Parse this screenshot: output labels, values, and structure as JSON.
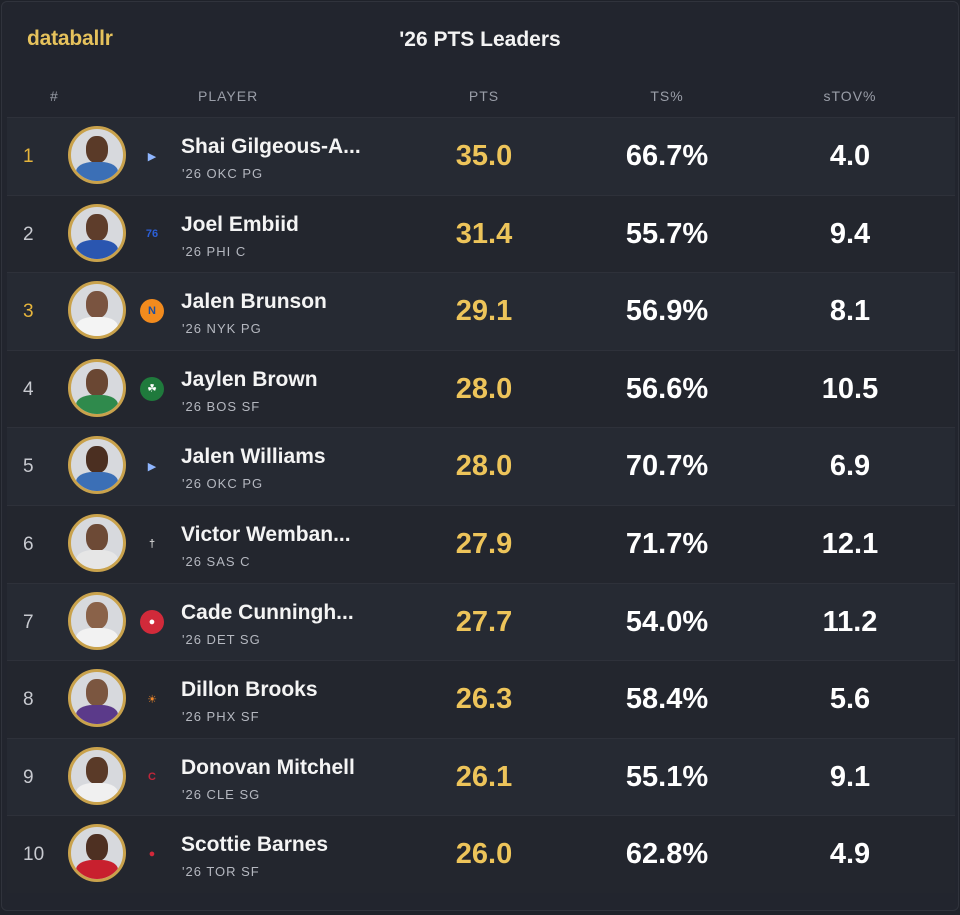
{
  "header": {
    "brand": "databallr",
    "title": "'26 PTS Leaders"
  },
  "columns": {
    "rank": "#",
    "player": "PLAYER",
    "pts": "PTS",
    "ts": "TS%",
    "stov": "sTOV%"
  },
  "colors": {
    "accent_gold": "#e6c25c",
    "background": "#22252e"
  },
  "players": [
    {
      "rank": "1",
      "name": "Shai Gilgeous-A...",
      "meta": "'26 OKC PG",
      "pts": "35.0",
      "ts": "66.7%",
      "stov": "4.0",
      "team_icon": "thunder-logo-icon"
    },
    {
      "rank": "2",
      "name": "Joel Embiid",
      "meta": "'26 PHI C",
      "pts": "31.4",
      "ts": "55.7%",
      "stov": "9.4",
      "team_icon": "76ers-logo-icon"
    },
    {
      "rank": "3",
      "name": "Jalen Brunson",
      "meta": "'26 NYK PG",
      "pts": "29.1",
      "ts": "56.9%",
      "stov": "8.1",
      "team_icon": "knicks-logo-icon"
    },
    {
      "rank": "4",
      "name": "Jaylen Brown",
      "meta": "'26 BOS SF",
      "pts": "28.0",
      "ts": "56.6%",
      "stov": "10.5",
      "team_icon": "celtics-logo-icon"
    },
    {
      "rank": "5",
      "name": "Jalen Williams",
      "meta": "'26 OKC PG",
      "pts": "28.0",
      "ts": "70.7%",
      "stov": "6.9",
      "team_icon": "thunder-logo-icon"
    },
    {
      "rank": "6",
      "name": "Victor Wemban...",
      "meta": "'26 SAS C",
      "pts": "27.9",
      "ts": "71.7%",
      "stov": "12.1",
      "team_icon": "spurs-logo-icon"
    },
    {
      "rank": "7",
      "name": "Cade Cunningh...",
      "meta": "'26 DET SG",
      "pts": "27.7",
      "ts": "54.0%",
      "stov": "11.2",
      "team_icon": "pistons-logo-icon"
    },
    {
      "rank": "8",
      "name": "Dillon Brooks",
      "meta": "'26 PHX SF",
      "pts": "26.3",
      "ts": "58.4%",
      "stov": "5.6",
      "team_icon": "suns-logo-icon"
    },
    {
      "rank": "9",
      "name": "Donovan Mitchell",
      "meta": "'26 CLE SG",
      "pts": "26.1",
      "ts": "55.1%",
      "stov": "9.1",
      "team_icon": "cavaliers-logo-icon"
    },
    {
      "rank": "10",
      "name": "Scottie Barnes",
      "meta": "'26 TOR SF",
      "pts": "26.0",
      "ts": "62.8%",
      "stov": "4.9",
      "team_icon": "raptors-logo-icon"
    }
  ]
}
